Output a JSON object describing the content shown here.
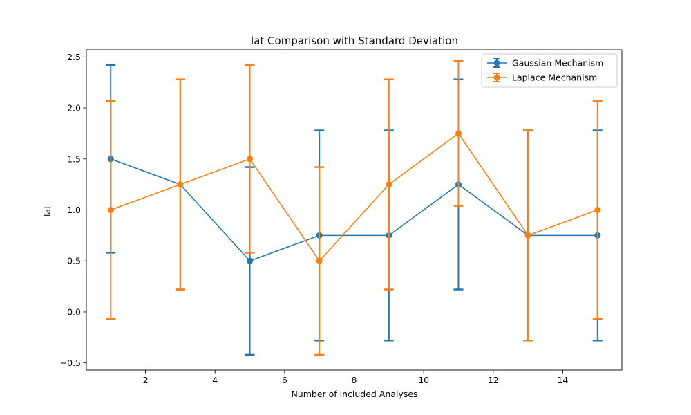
{
  "chart_data": {
    "type": "line",
    "title": "lat Comparison with Standard Deviation",
    "xlabel": "Number of included Analyses",
    "ylabel": "lat",
    "xlim": [
      0.3,
      15.7
    ],
    "ylim": [
      -0.57,
      2.57
    ],
    "xticks": [
      2,
      4,
      6,
      8,
      10,
      12,
      14
    ],
    "yticks": [
      -0.5,
      0.0,
      0.5,
      1.0,
      1.5,
      2.0,
      2.5
    ],
    "ytick_labels": [
      "−0.5",
      "0.0",
      "0.5",
      "1.0",
      "1.5",
      "2.0",
      "2.5"
    ],
    "grid": false,
    "legend": "top-right",
    "x": [
      1,
      3,
      5,
      7,
      9,
      11,
      13,
      15
    ],
    "series": [
      {
        "name": "Gaussian Mechanism",
        "color": "#1f77b4",
        "values": [
          1.5,
          1.25,
          0.5,
          0.75,
          0.75,
          1.25,
          0.75,
          0.75
        ],
        "errors": [
          0.92,
          1.03,
          0.92,
          1.03,
          1.03,
          1.03,
          1.03,
          1.03
        ]
      },
      {
        "name": "Laplace Mechanism",
        "color": "#ff7f0e",
        "values": [
          1.0,
          1.25,
          1.5,
          0.5,
          1.25,
          1.75,
          0.75,
          1.0
        ],
        "errors": [
          1.07,
          1.03,
          0.92,
          0.92,
          1.03,
          0.71,
          1.03,
          1.07
        ]
      }
    ]
  }
}
